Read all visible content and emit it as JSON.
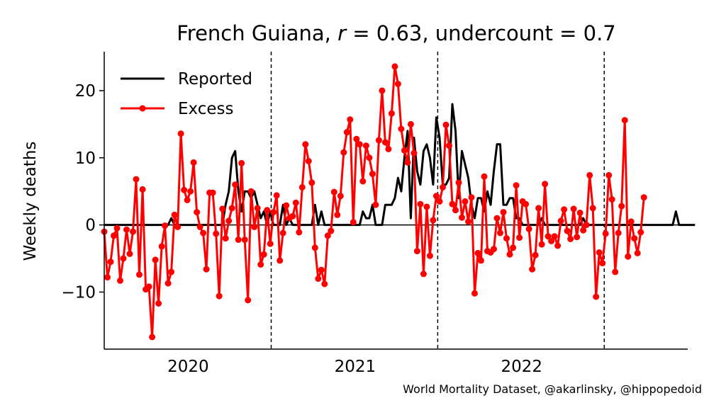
{
  "chart_data": {
    "type": "line",
    "title_parts": {
      "prefix": "French Guiana, ",
      "r_symbol": "r",
      "r_value": " = 0.63, undercount = 0.7"
    },
    "ylabel": "Weekly deaths",
    "xlabel": "",
    "credit": "World Mortality Dataset, @akarlinsky, @hippopedoid",
    "xlim": [
      "2019-07-01",
      "2022-12-31"
    ],
    "ylim": [
      -18.5,
      25.8
    ],
    "yticks": [
      {
        "value": -10,
        "label": "−10"
      },
      {
        "value": 0,
        "label": "0"
      },
      {
        "value": 10,
        "label": "10"
      },
      {
        "value": 20,
        "label": "20"
      }
    ],
    "xticks": [
      {
        "date": "2020-01-01",
        "label": "2020"
      },
      {
        "date": "2021-01-01",
        "label": "2021"
      },
      {
        "date": "2022-01-01",
        "label": "2022"
      }
    ],
    "vlines": [
      "2020-07-01",
      "2021-07-01",
      "2022-07-01"
    ],
    "zero_line": true,
    "grid": false,
    "legend": {
      "position": "top-left",
      "entries": [
        "Reported",
        "Excess"
      ]
    },
    "series": [
      {
        "name": "Reported",
        "color": "#000000",
        "markers": false,
        "start": "2019-07-01",
        "interval_days": 7,
        "values": [
          0,
          0,
          0,
          0,
          0,
          0,
          0,
          0,
          0,
          0,
          0,
          0,
          0,
          0,
          0,
          0,
          0,
          0,
          0,
          0,
          0,
          1,
          0,
          0,
          0,
          0,
          0,
          0,
          0,
          0,
          0,
          0,
          0,
          0,
          0,
          0,
          0,
          0,
          3,
          5,
          10,
          11,
          5,
          2,
          5,
          5,
          4,
          5,
          3,
          1,
          2,
          0,
          2,
          0,
          0,
          0,
          3,
          0,
          1,
          0,
          0,
          0,
          0,
          0,
          0,
          0,
          3,
          0,
          2,
          0,
          0,
          0,
          0,
          0,
          0,
          0,
          0,
          0,
          0,
          0,
          0,
          2,
          1,
          1,
          3,
          0,
          0,
          0,
          3,
          3,
          3,
          4,
          7,
          5,
          10,
          14,
          1,
          13,
          8,
          6,
          11,
          12,
          10,
          6,
          16,
          13,
          6,
          6,
          7,
          18,
          14,
          4,
          11,
          9,
          7,
          3,
          1,
          4,
          4,
          2,
          5,
          3,
          8,
          12,
          12,
          3,
          3,
          4,
          4,
          1,
          1,
          0,
          0,
          0,
          0,
          0,
          0,
          1,
          0,
          0,
          0,
          0,
          0,
          0,
          0,
          0,
          0,
          0,
          0,
          0,
          1,
          0,
          0,
          0,
          0,
          0,
          0,
          0,
          0,
          0,
          0,
          0,
          0,
          0,
          0,
          0,
          0,
          0,
          0,
          0,
          0,
          0,
          0,
          0,
          0,
          0,
          0,
          0,
          0,
          2,
          0,
          0,
          0,
          0,
          0,
          0
        ]
      },
      {
        "name": "Excess",
        "color": "#ff0000",
        "markers": true,
        "start": "2019-07-01",
        "interval_days": 7,
        "values": [
          -1,
          -7.8,
          -5.5,
          -1.6,
          -0.5,
          -8.3,
          -5,
          -0.7,
          -4.3,
          -1,
          6.8,
          -7.4,
          5.3,
          -9.6,
          -9.2,
          -16.7,
          -5.2,
          -11.7,
          -3.2,
          -0.1,
          -8.7,
          -7,
          1.5,
          -0.3,
          13.6,
          5.2,
          3.7,
          5,
          9.3,
          1.9,
          -0.3,
          -1.2,
          -6.6,
          4.8,
          4.8,
          -1.3,
          -10.6,
          2.4,
          -2,
          0.6,
          2.5,
          6,
          -2.2,
          9.2,
          -2.2,
          -11.2,
          5,
          -0.3,
          2.5,
          -5.9,
          -4.4,
          2.2,
          -2.8,
          1.9,
          4.4,
          -5.3,
          -1.2,
          2.9,
          1,
          1.3,
          3.3,
          -1.1,
          5.6,
          12,
          9.5,
          6.3,
          -3.4,
          -8,
          -6.7,
          -8.8,
          -1.6,
          -0.9,
          4.9,
          1.5,
          4.3,
          10.8,
          13.8,
          15.7,
          0.4,
          12.8,
          12,
          6.5,
          11.8,
          10,
          7.6,
          3,
          12.6,
          20,
          12.3,
          11.3,
          16.6,
          23.6,
          21,
          14.3,
          11.1,
          9.3,
          15,
          10.7,
          -3.9,
          3.1,
          -7.3,
          2.7,
          -4.6,
          0.7,
          4.3,
          3.5,
          5.6,
          14.9,
          11.8,
          3.1,
          2.2,
          6.3,
          1.1,
          3.5,
          0.5,
          4.1,
          -10.2,
          -4.2,
          -5.3,
          7.2,
          -3.9,
          -4.1,
          -3.6,
          1,
          -1.2,
          1.9,
          -2,
          -4.4,
          -3.4,
          5.9,
          -1.9,
          3.5,
          3.1,
          -0.6,
          -6.6,
          -4.5,
          2.5,
          -2.9,
          6.1,
          -1.7,
          -2.4,
          -1.7,
          -3.1,
          0.6,
          2.3,
          -0.9,
          -2.1,
          2.4,
          -1.8,
          1.8,
          -0.8,
          0,
          7.4,
          2.5,
          -10.7,
          -4.1,
          -5.7,
          -1.3,
          7.4,
          3.8,
          -7,
          -1.2,
          2.8,
          15.6,
          -4.7,
          0.5,
          -2,
          -4.2,
          -1.1,
          4.1
        ]
      }
    ]
  }
}
